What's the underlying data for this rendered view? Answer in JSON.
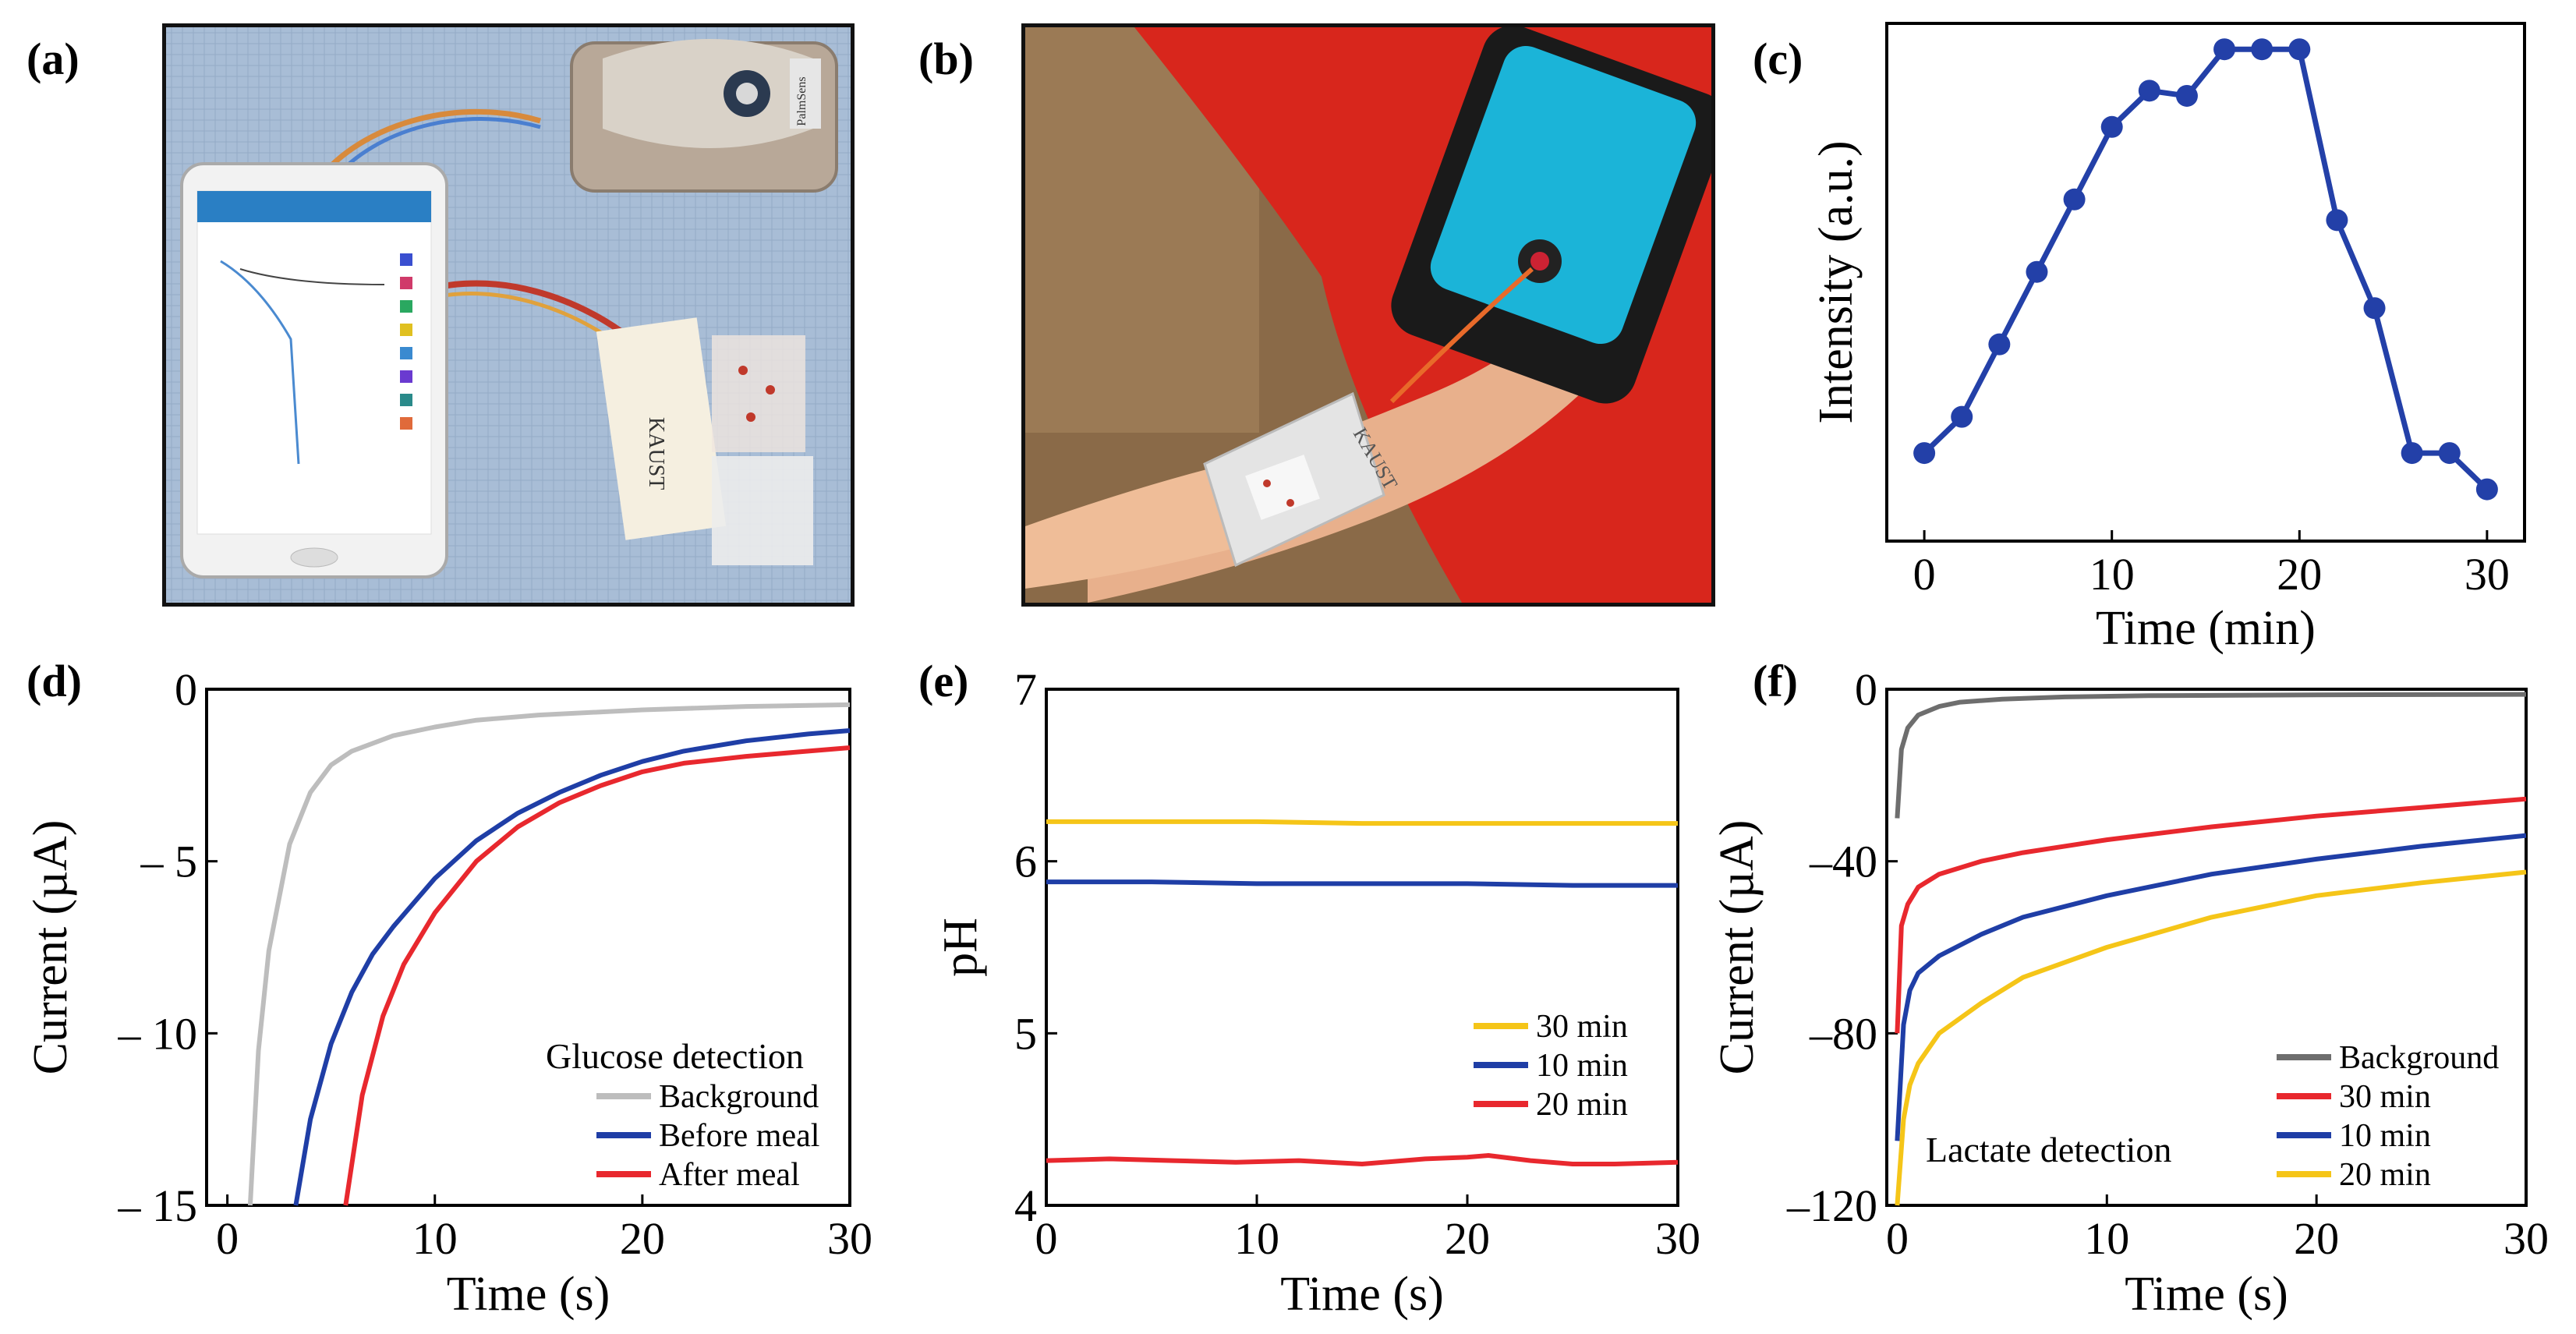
{
  "panels": {
    "a": "(a)",
    "b": "(b)",
    "c": "(c)",
    "d": "(d)",
    "e": "(e)",
    "f": "(f)"
  },
  "photos": {
    "a": {
      "strip_label": "KAUST",
      "reader_label": "PalmSens"
    },
    "b": {
      "armband_label": "KAUST"
    }
  },
  "colors": {
    "blue": "#1f3ea6",
    "red": "#e8282e",
    "gray": "#bdbdbd",
    "dark_gray": "#6e6e6e",
    "yellow": "#f5c518"
  },
  "chart_data": [
    {
      "id": "c",
      "type": "line",
      "title": "",
      "xlabel": "Time (min)",
      "ylabel": "Intensity (a.u.)",
      "xlim": [
        -2,
        32
      ],
      "ylim": [
        0,
        100
      ],
      "xticks": [
        "0",
        "10",
        "20",
        "30"
      ],
      "yticks_shown": false,
      "series": [
        {
          "name": "Intensity",
          "color": "#2340a8",
          "x": [
            0,
            2,
            4,
            6,
            8,
            10,
            12,
            14,
            16,
            18,
            20,
            22,
            24,
            26,
            28,
            30
          ],
          "y": [
            17,
            24,
            38,
            52,
            66,
            80,
            87,
            86,
            95,
            95,
            95,
            62,
            45,
            17,
            17,
            10
          ]
        }
      ]
    },
    {
      "id": "d",
      "type": "line",
      "xlabel": "Time (s)",
      "ylabel": "Current (µA)",
      "xlim": [
        -1,
        30
      ],
      "ylim": [
        -15,
        0
      ],
      "xticks": [
        "0",
        "10",
        "20",
        "30"
      ],
      "yticks": [
        "0",
        "– 5",
        "– 10",
        "– 15"
      ],
      "legend_title": "Glucose detection",
      "legend_position": "bottom-right",
      "series": [
        {
          "name": "Background",
          "color": "#bdbdbd",
          "x": [
            1.1,
            1.5,
            2,
            3,
            4,
            5,
            6,
            8,
            10,
            12,
            15,
            20,
            25,
            30
          ],
          "y": [
            -15,
            -10.5,
            -7.6,
            -4.5,
            -3.0,
            -2.2,
            -1.8,
            -1.35,
            -1.1,
            -0.9,
            -0.75,
            -0.6,
            -0.5,
            -0.45
          ]
        },
        {
          "name": "Before meal",
          "color": "#1f3ea6",
          "x": [
            3.3,
            4,
            5,
            6,
            7,
            8,
            9,
            10,
            12,
            14,
            16,
            18,
            20,
            22,
            25,
            28,
            30
          ],
          "y": [
            -15,
            -12.5,
            -10.3,
            -8.8,
            -7.7,
            -6.9,
            -6.2,
            -5.5,
            -4.4,
            -3.6,
            -3.0,
            -2.5,
            -2.1,
            -1.8,
            -1.5,
            -1.3,
            -1.2
          ]
        },
        {
          "name": "After meal",
          "color": "#e8282e",
          "x": [
            5.7,
            6.5,
            7.5,
            8.5,
            10,
            12,
            14,
            16,
            18,
            20,
            22,
            25,
            28,
            30
          ],
          "y": [
            -15,
            -11.8,
            -9.5,
            -8.0,
            -6.5,
            -5.0,
            -4.0,
            -3.3,
            -2.8,
            -2.4,
            -2.15,
            -1.95,
            -1.8,
            -1.7
          ]
        }
      ]
    },
    {
      "id": "e",
      "type": "line",
      "xlabel": "Time (s)",
      "ylabel": "pH",
      "xlim": [
        0,
        30
      ],
      "ylim": [
        4,
        7
      ],
      "xticks": [
        "0",
        "10",
        "20",
        "30"
      ],
      "yticks": [
        "4",
        "5",
        "6",
        "7"
      ],
      "legend_position": "right",
      "series": [
        {
          "name": "30 min",
          "color": "#f5c518",
          "x": [
            0,
            5,
            10,
            15,
            20,
            25,
            30
          ],
          "y": [
            6.23,
            6.23,
            6.23,
            6.22,
            6.22,
            6.22,
            6.22
          ]
        },
        {
          "name": "10 min",
          "color": "#1f3ea6",
          "x": [
            0,
            5,
            10,
            15,
            20,
            25,
            30
          ],
          "y": [
            5.88,
            5.88,
            5.87,
            5.87,
            5.87,
            5.86,
            5.86
          ]
        },
        {
          "name": "20 min",
          "color": "#e8282e",
          "x": [
            0,
            3,
            6,
            9,
            12,
            15,
            18,
            20,
            21,
            23,
            25,
            27,
            30
          ],
          "y": [
            4.26,
            4.27,
            4.26,
            4.25,
            4.26,
            4.24,
            4.27,
            4.28,
            4.29,
            4.26,
            4.24,
            4.24,
            4.25
          ]
        }
      ]
    },
    {
      "id": "f",
      "type": "line",
      "xlabel": "Time (s)",
      "ylabel": "Current (µA)",
      "xlim": [
        -0.5,
        30
      ],
      "ylim": [
        -120,
        0
      ],
      "xticks": [
        "0",
        "10",
        "20",
        "30"
      ],
      "yticks": [
        "0",
        "–40",
        "–80",
        "–120"
      ],
      "legend_position": "bottom-right",
      "annotation": "Lactate detection",
      "series": [
        {
          "name": "Background",
          "color": "#6e6e6e",
          "x": [
            0,
            0.2,
            0.5,
            1,
            2,
            3,
            5,
            8,
            12,
            20,
            30
          ],
          "y": [
            -30,
            -14,
            -9,
            -6,
            -4,
            -3,
            -2.3,
            -1.8,
            -1.5,
            -1.3,
            -1.2
          ]
        },
        {
          "name": "30 min",
          "color": "#e8282e",
          "x": [
            0,
            0.2,
            0.5,
            1,
            2,
            4,
            6,
            10,
            15,
            20,
            25,
            30
          ],
          "y": [
            -80,
            -55,
            -50,
            -46,
            -43,
            -40,
            -38,
            -35,
            -32,
            -29.5,
            -27.5,
            -25.5
          ]
        },
        {
          "name": "10 min",
          "color": "#1f3ea6",
          "x": [
            0,
            0.3,
            0.6,
            1,
            2,
            4,
            6,
            10,
            15,
            20,
            25,
            30
          ],
          "y": [
            -105,
            -78,
            -70,
            -66,
            -62,
            -57,
            -53,
            -48,
            -43,
            -39.5,
            -36.5,
            -34
          ]
        },
        {
          "name": "20 min",
          "color": "#f5c518",
          "x": [
            0,
            0.3,
            0.6,
            1,
            2,
            4,
            6,
            10,
            15,
            20,
            25,
            30
          ],
          "y": [
            -120,
            -100,
            -92,
            -87,
            -80,
            -73,
            -67,
            -60,
            -53,
            -48,
            -45,
            -42.5
          ]
        }
      ]
    }
  ]
}
